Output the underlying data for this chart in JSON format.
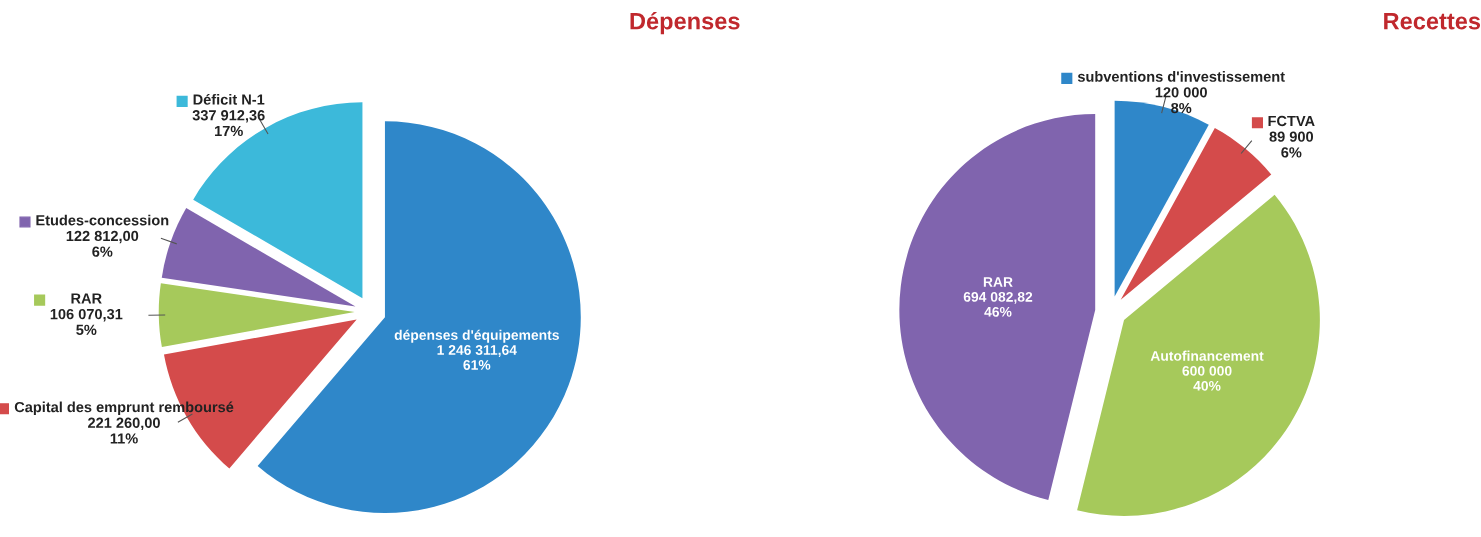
{
  "chart_data": [
    {
      "type": "pie",
      "title": "Dépenses",
      "categories": [
        "dépenses d'équipements",
        "Capital des emprunt remboursé",
        "RAR",
        "Etudes-concession",
        "Déficit N-1"
      ],
      "values": [
        1246311.64,
        221260.0,
        106070.31,
        122812.0,
        337912.36
      ],
      "value_labels": [
        "1 246 311,64\n61%",
        "221 260,00\n11%",
        "106 070,31\n5%",
        "122 812,00\n6%",
        "337 912,36\n17%"
      ],
      "colors": [
        "#2f87c9",
        "#d44b4b",
        "#a6c95b",
        "#8064ae",
        "#3cb9da"
      ],
      "legend": "left"
    },
    {
      "type": "pie",
      "title": "Recettes",
      "categories": [
        "subventions d'investissement",
        "FCTVA",
        "Autofinancement",
        "RAR"
      ],
      "values": [
        120000,
        89900,
        600000,
        694082.82
      ],
      "value_labels": [
        "120 000\n8%",
        "89 900\n6%",
        "600 000\n40%",
        "694 082,82\n46%"
      ],
      "colors": [
        "#2f87c9",
        "#d44b4b",
        "#a6c95b",
        "#8064ae"
      ],
      "legend": "top"
    }
  ]
}
